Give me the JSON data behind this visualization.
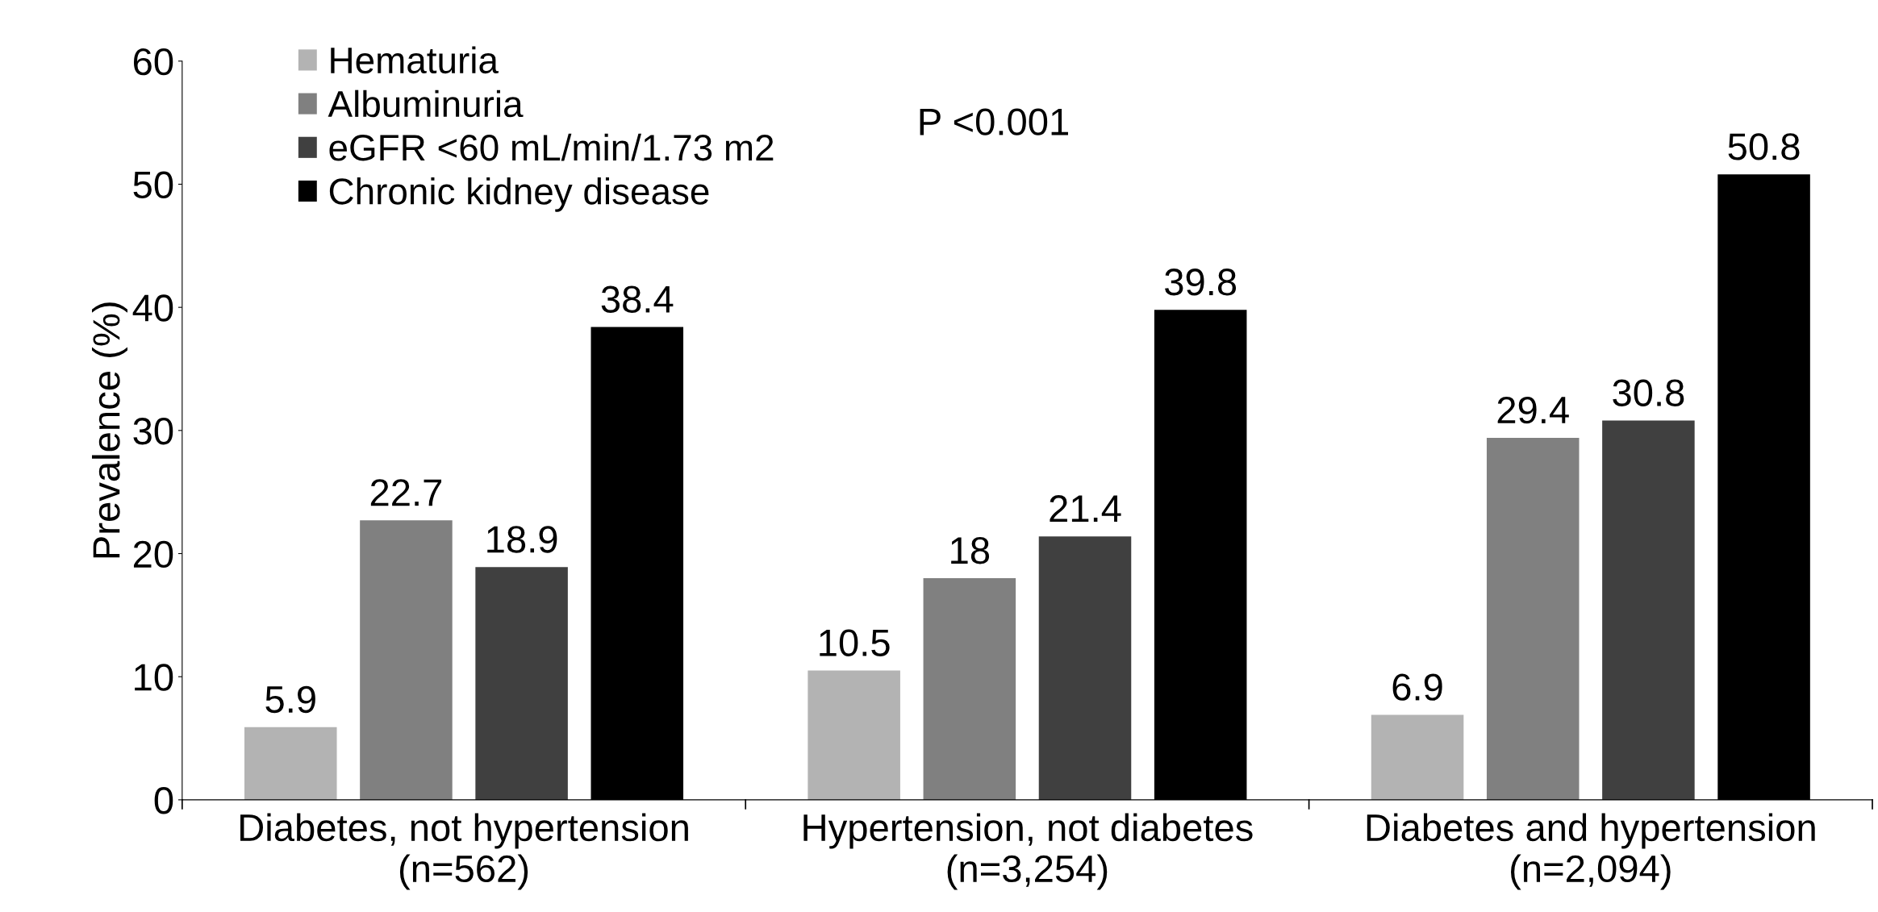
{
  "chart_data": {
    "type": "bar",
    "ylabel": "Prevalence (%)",
    "categories": [
      "Diabetes, not hypertension\n(n=562)",
      "Hypertension, not diabetes\n(n=3,254)",
      "Diabetes and hypertension\n(n=2,094)"
    ],
    "series": [
      {
        "name": "Hematuria",
        "color": "#b3b3b3",
        "values": [
          5.9,
          10.5,
          6.9
        ]
      },
      {
        "name": "Albuminuria",
        "color": "#808080",
        "values": [
          22.7,
          18,
          29.4
        ]
      },
      {
        "name": "eGFR <60 mL/min/1.73 m2",
        "color": "#404040",
        "values": [
          18.9,
          21.4,
          30.8
        ]
      },
      {
        "name": "Chronic kidney disease",
        "color": "#000000",
        "values": [
          38.4,
          39.8,
          50.8
        ]
      }
    ],
    "ylim": [
      0,
      60
    ],
    "yticks": [
      0,
      10,
      20,
      30,
      40,
      50,
      60
    ],
    "data_labels": true,
    "legend": "top left",
    "grid": false,
    "annotations": [
      "P <0.001"
    ]
  }
}
